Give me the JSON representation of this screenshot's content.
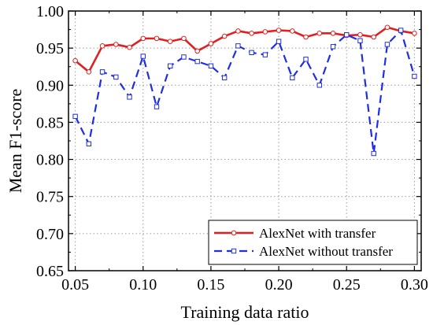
{
  "chart_data": {
    "type": "line",
    "title": "",
    "xlabel": "Training data ratio",
    "ylabel": "Mean F1-score",
    "xlim": [
      0.045,
      0.305
    ],
    "ylim": [
      0.65,
      1.0
    ],
    "grid": true,
    "legend_position": "bottom-right",
    "x_ticks": [
      "0.05",
      "0.10",
      "0.15",
      "0.20",
      "0.25",
      "0.30"
    ],
    "y_ticks": [
      "0.65",
      "0.70",
      "0.75",
      "0.80",
      "0.85",
      "0.90",
      "0.95",
      "1.00"
    ],
    "x": [
      0.05,
      0.06,
      0.07,
      0.08,
      0.09,
      0.1,
      0.11,
      0.12,
      0.13,
      0.14,
      0.15,
      0.16,
      0.17,
      0.18,
      0.19,
      0.2,
      0.21,
      0.22,
      0.23,
      0.24,
      0.25,
      0.26,
      0.27,
      0.28,
      0.29,
      0.3
    ],
    "series": [
      {
        "name": "AlexNet with transfer",
        "color": "#e02020",
        "style": "solid",
        "marker": "circle",
        "values": [
          0.933,
          0.918,
          0.953,
          0.955,
          0.951,
          0.963,
          0.963,
          0.959,
          0.963,
          0.946,
          0.956,
          0.966,
          0.973,
          0.97,
          0.972,
          0.974,
          0.973,
          0.965,
          0.97,
          0.97,
          0.967,
          0.968,
          0.965,
          0.978,
          0.973,
          0.97
        ]
      },
      {
        "name": "AlexNet without transfer",
        "color": "#1f2fe0",
        "style": "dashed",
        "marker": "square",
        "values": [
          0.858,
          0.821,
          0.918,
          0.911,
          0.884,
          0.939,
          0.871,
          0.926,
          0.938,
          0.932,
          0.926,
          0.91,
          0.953,
          0.944,
          0.941,
          0.959,
          0.91,
          0.935,
          0.9,
          0.952,
          0.968,
          0.96,
          0.808,
          0.955,
          0.974,
          0.912
        ]
      }
    ]
  }
}
